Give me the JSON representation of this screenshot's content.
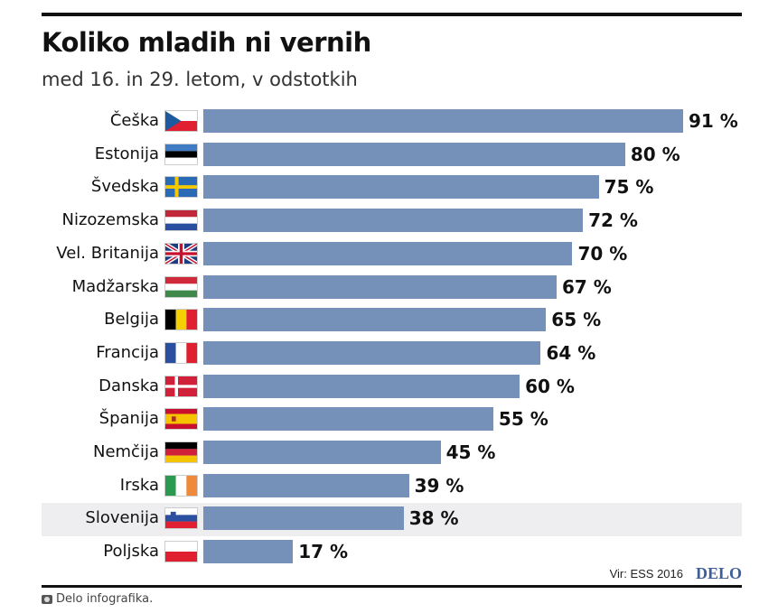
{
  "header": {
    "title": "Koliko mladih ni vernih",
    "subtitle": "med 16. in 29. letom, v odstotkih"
  },
  "chart_data": {
    "type": "bar",
    "orientation": "horizontal",
    "title": "Koliko mladih ni vernih",
    "subtitle": "med 16. in 29. letom, v odstotkih",
    "unit": "%",
    "xlim": [
      0,
      100
    ],
    "highlight": "Slovenija",
    "bars": [
      {
        "label": "Češka",
        "value": 91,
        "value_label": "91 %",
        "flag": "cz"
      },
      {
        "label": "Estonija",
        "value": 80,
        "value_label": "80 %",
        "flag": "ee"
      },
      {
        "label": "Švedska",
        "value": 75,
        "value_label": "75 %",
        "flag": "se"
      },
      {
        "label": "Nizozemska",
        "value": 72,
        "value_label": "72 %",
        "flag": "nl"
      },
      {
        "label": "Vel. Britanija",
        "value": 70,
        "value_label": "70 %",
        "flag": "gb"
      },
      {
        "label": "Madžarska",
        "value": 67,
        "value_label": "67 %",
        "flag": "hu"
      },
      {
        "label": "Belgija",
        "value": 65,
        "value_label": "65 %",
        "flag": "be"
      },
      {
        "label": "Francija",
        "value": 64,
        "value_label": "64 %",
        "flag": "fr"
      },
      {
        "label": "Danska",
        "value": 60,
        "value_label": "60 %",
        "flag": "dk"
      },
      {
        "label": "Španija",
        "value": 55,
        "value_label": "55 %",
        "flag": "es"
      },
      {
        "label": "Nemčija",
        "value": 45,
        "value_label": "45 %",
        "flag": "de"
      },
      {
        "label": "Irska",
        "value": 39,
        "value_label": "39 %",
        "flag": "ie"
      },
      {
        "label": "Slovenija",
        "value": 38,
        "value_label": "38 %",
        "flag": "si"
      },
      {
        "label": "Poljska",
        "value": 17,
        "value_label": "17 %",
        "flag": "pl"
      }
    ],
    "bar_color": "#7590b9"
  },
  "footer": {
    "source": "Vir: ESS 2016",
    "logo": "DELO",
    "credit": "Delo infografika."
  }
}
